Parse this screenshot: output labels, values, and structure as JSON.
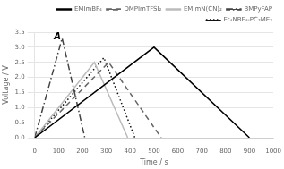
{
  "chart_data": {
    "type": "line",
    "xlabel": "Time / s",
    "ylabel": "Voltage / V",
    "xlim": [
      0,
      1000
    ],
    "ylim": [
      0,
      3.5
    ],
    "xticks": [
      0,
      100,
      200,
      300,
      400,
      500,
      600,
      700,
      800,
      900,
      1000
    ],
    "yticks": [
      {
        "value": 0,
        "label": "0.0"
      },
      0.5,
      {
        "value": 1.0,
        "label": "1.0"
      },
      1.5,
      {
        "value": 2.0,
        "label": "2.0"
      },
      2.5,
      {
        "value": 3.0,
        "label": "3.0"
      },
      3.5
    ],
    "grid": "y",
    "legend": "upper right",
    "series": [
      {
        "name": "EMImBF₄",
        "color": "#000000",
        "line_style": "solid",
        "x": [
          0,
          500,
          900
        ],
        "values": [
          0.0,
          3.0,
          0.0
        ]
      },
      {
        "name": "DMPImTFSI₂",
        "color": "#666666",
        "line_style": "dashed",
        "x": [
          0,
          310,
          530
        ],
        "values": [
          0.0,
          2.5,
          0.0
        ]
      },
      {
        "name": "EMImN(CN)₂",
        "color": "#bbbbbb",
        "line_style": "solid",
        "x": [
          0,
          250,
          390
        ],
        "values": [
          0.0,
          2.5,
          0.0
        ]
      },
      {
        "name": "BMPyFAP",
        "color": "#444444",
        "line_style": "dashdot",
        "x": [
          0,
          115,
          210
        ],
        "values": [
          0.0,
          3.3,
          0.0
        ]
      },
      {
        "name": "Et₄NBF₄-PC₂ME₂",
        "color": "#111111",
        "line_style": "dotted",
        "x": [
          0,
          290,
          420
        ],
        "values": [
          0.0,
          2.65,
          0.0
        ]
      }
    ],
    "annotations": [
      {
        "text": "A",
        "x": 95,
        "y": 3.2
      }
    ]
  }
}
